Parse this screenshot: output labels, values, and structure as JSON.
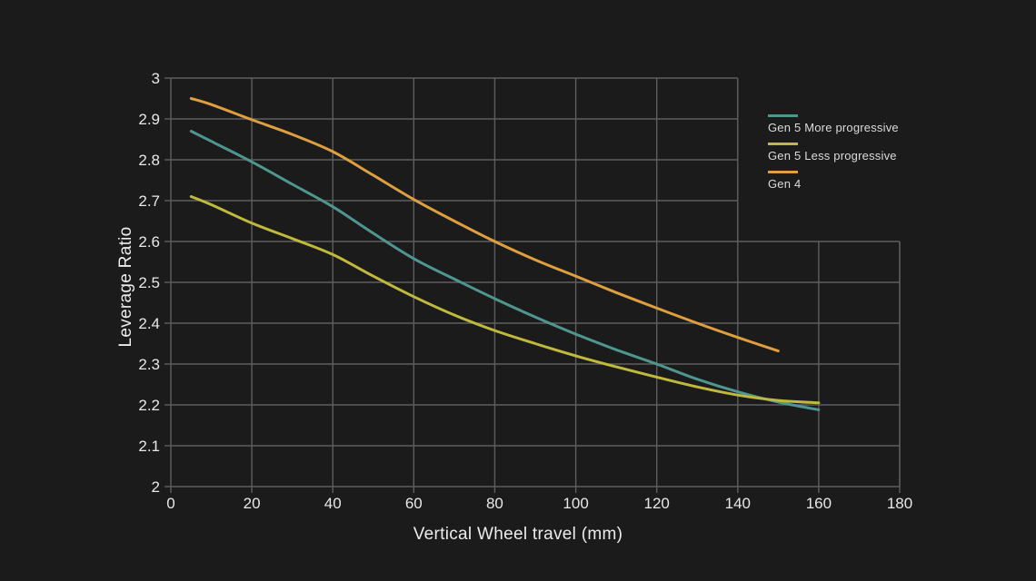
{
  "theme": {
    "background": "#1b1b1b",
    "grid": "#5e5e5e",
    "text": "#e8e8e8"
  },
  "chart_data": {
    "type": "line",
    "title": "",
    "xlabel": "Vertical Wheel travel (mm)",
    "ylabel": "Leverage Ratio",
    "xlim": [
      0,
      180
    ],
    "ylim": [
      2.0,
      3.0
    ],
    "x_ticks": [
      0,
      20,
      40,
      60,
      80,
      100,
      120,
      140,
      160,
      180
    ],
    "x_tick_labels": [
      "0",
      "20",
      "40",
      "60",
      "80",
      "100",
      "120",
      "140",
      "160",
      "180"
    ],
    "y_ticks": [
      3.0,
      2.9,
      2.8,
      2.7,
      2.6,
      2.5,
      2.4,
      2.3,
      2.2,
      2.1,
      2.0
    ],
    "y_tick_labels": [
      "3",
      "2.9",
      "2.8",
      "2.7",
      "2.6",
      "2.5",
      "2.4",
      "2.3",
      "2.2",
      "2.1",
      "2"
    ],
    "grid": true,
    "grid_note": "stepped plot frame: rows 2.6-3.0 span 0-140 mm, rows 2.0-2.6 span 0-180 mm",
    "legend_position": "right",
    "series": [
      {
        "name": "Gen 5 More progressive",
        "color": "#4e968f",
        "points": [
          [
            5,
            2.87
          ],
          [
            10,
            2.845
          ],
          [
            20,
            2.795
          ],
          [
            30,
            2.74
          ],
          [
            40,
            2.685
          ],
          [
            50,
            2.62
          ],
          [
            60,
            2.558
          ],
          [
            70,
            2.508
          ],
          [
            80,
            2.46
          ],
          [
            90,
            2.415
          ],
          [
            100,
            2.373
          ],
          [
            110,
            2.335
          ],
          [
            120,
            2.3
          ],
          [
            130,
            2.263
          ],
          [
            140,
            2.232
          ],
          [
            150,
            2.207
          ],
          [
            160,
            2.188
          ]
        ]
      },
      {
        "name": "Gen 5 Less progressive",
        "color": "#bfba3d",
        "points": [
          [
            5,
            2.71
          ],
          [
            10,
            2.69
          ],
          [
            20,
            2.645
          ],
          [
            30,
            2.607
          ],
          [
            40,
            2.568
          ],
          [
            50,
            2.515
          ],
          [
            60,
            2.465
          ],
          [
            70,
            2.42
          ],
          [
            80,
            2.382
          ],
          [
            90,
            2.35
          ],
          [
            100,
            2.32
          ],
          [
            110,
            2.293
          ],
          [
            120,
            2.268
          ],
          [
            130,
            2.244
          ],
          [
            140,
            2.224
          ],
          [
            150,
            2.211
          ],
          [
            160,
            2.205
          ]
        ]
      },
      {
        "name": "Gen 4",
        "color": "#dd9f40",
        "points": [
          [
            5,
            2.95
          ],
          [
            10,
            2.935
          ],
          [
            20,
            2.898
          ],
          [
            30,
            2.862
          ],
          [
            40,
            2.82
          ],
          [
            50,
            2.762
          ],
          [
            60,
            2.703
          ],
          [
            70,
            2.65
          ],
          [
            80,
            2.6
          ],
          [
            90,
            2.555
          ],
          [
            100,
            2.515
          ],
          [
            110,
            2.475
          ],
          [
            120,
            2.437
          ],
          [
            130,
            2.4
          ],
          [
            140,
            2.365
          ],
          [
            150,
            2.332
          ]
        ]
      }
    ]
  }
}
